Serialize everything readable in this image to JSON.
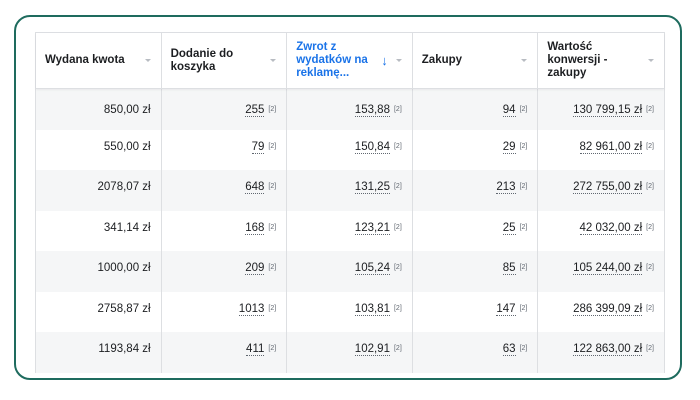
{
  "table": {
    "columns": [
      {
        "label": "Wydana kwota",
        "sorted": false
      },
      {
        "label": "Dodanie do koszyka",
        "sorted": false
      },
      {
        "label": "Zwrot z wydatków na reklamę...",
        "sorted": true,
        "sort_icon": "arrow-down-icon",
        "sort_glyph": "↓"
      },
      {
        "label": "Zakupy",
        "sorted": false
      },
      {
        "label": "Wartość konwersji - zakupy",
        "sorted": false
      }
    ],
    "reference_marker": "[2]",
    "rows": [
      {
        "spend": "850,00 zł",
        "add_to_cart": "255",
        "roas": "153,88",
        "purchases": "94",
        "conversion_value": "130 799,15 zł"
      },
      {
        "spend": "550,00 zł",
        "add_to_cart": "79",
        "roas": "150,84",
        "purchases": "29",
        "conversion_value": "82 961,00 zł"
      },
      {
        "spend": "2078,07 zł",
        "add_to_cart": "648",
        "roas": "131,25",
        "purchases": "213",
        "conversion_value": "272 755,00 zł"
      },
      {
        "spend": "341,14 zł",
        "add_to_cart": "168",
        "roas": "123,21",
        "purchases": "25",
        "conversion_value": "42 032,00 zł"
      },
      {
        "spend": "1000,00 zł",
        "add_to_cart": "209",
        "roas": "105,24",
        "purchases": "85",
        "conversion_value": "105 244,00 zł"
      },
      {
        "spend": "2758,87 zł",
        "add_to_cart": "1013",
        "roas": "103,81",
        "purchases": "147",
        "conversion_value": "286 399,09 zł"
      },
      {
        "spend": "1193,84 zł",
        "add_to_cart": "411",
        "roas": "102,91",
        "purchases": "63",
        "conversion_value": "122 863,00 zł"
      }
    ]
  },
  "colors": {
    "frame_border": "#1e6b5e",
    "sorted_header": "#1a73e8",
    "row_alt": "#f5f6f7"
  }
}
